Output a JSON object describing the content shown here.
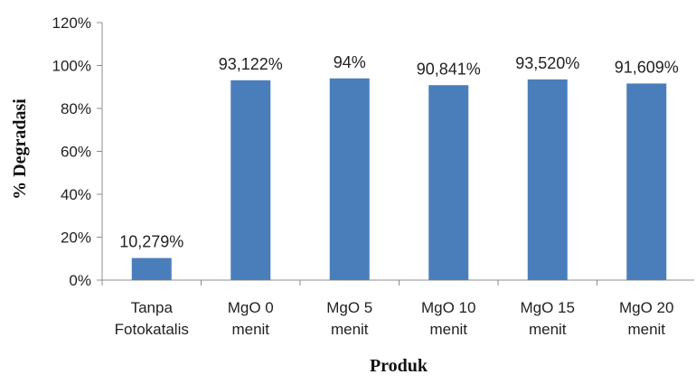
{
  "chart_data": {
    "type": "bar",
    "categories": [
      [
        "Tanpa",
        "Fotokatalis"
      ],
      [
        "MgO 0",
        "menit"
      ],
      [
        "MgO 5",
        "menit"
      ],
      [
        "MgO 10",
        "menit"
      ],
      [
        "MgO 15",
        "menit"
      ],
      [
        "MgO 20",
        "menit"
      ]
    ],
    "values": [
      10.279,
      93.122,
      94,
      90.841,
      93.52,
      91.609
    ],
    "data_labels": [
      "10,279%",
      "93,122%",
      "94%",
      "90,841%",
      "93,520%",
      "91,609%"
    ],
    "title": "",
    "xlabel": "Produk",
    "ylabel": "% Degradasi",
    "ylim": [
      0,
      120
    ],
    "yticks": [
      0,
      20,
      40,
      60,
      80,
      100,
      120
    ],
    "ytick_labels": [
      "0%",
      "20%",
      "40%",
      "60%",
      "80%",
      "100%",
      "120%"
    ],
    "grid": false,
    "legend": "none",
    "bar_color": "#4a7ebb",
    "axis_color": "#8c8c8c"
  }
}
